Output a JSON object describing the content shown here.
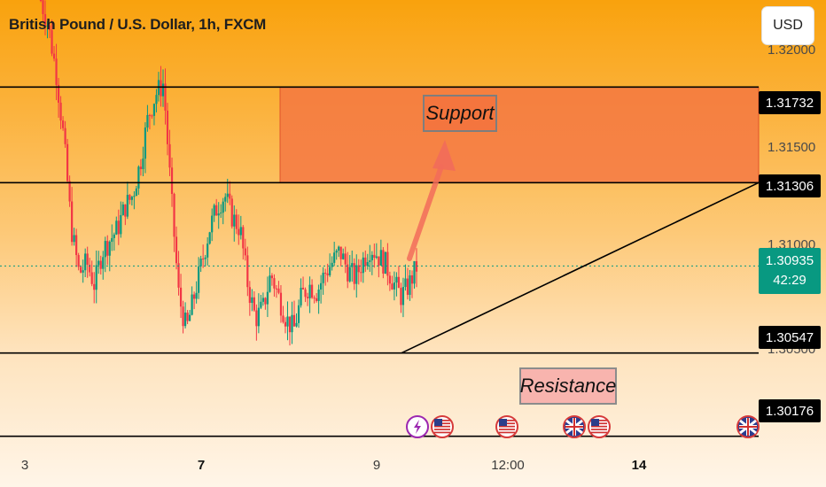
{
  "header": {
    "title": "British Pound / U.S. Dollar, 1h, FXCM",
    "currency_button": "USD"
  },
  "annotations": {
    "support_label": "Support",
    "resistance_label": "Resistance"
  },
  "price_tags": {
    "level_1": "1.31732",
    "level_2": "1.31306",
    "level_3": "1.30547",
    "level_4": "1.30176",
    "current_price": "1.30935",
    "countdown": "42:29"
  },
  "price_axis": {
    "ticks": [
      "1.32000",
      "1.31500",
      "1.31000",
      "1.30500"
    ]
  },
  "time_axis": {
    "labels": [
      "3",
      "7",
      "9",
      "12:00",
      "14"
    ]
  },
  "events": [
    {
      "icon": "lightning-icon"
    },
    {
      "icon": "us-flag-icon"
    },
    {
      "icon": "us-flag-icon"
    },
    {
      "icon": "uk-flag-icon"
    },
    {
      "icon": "us-flag-icon"
    },
    {
      "icon": "uk-flag-icon"
    }
  ],
  "colors": {
    "bull": "#089981",
    "bear": "#f23645",
    "zone": "#f47442",
    "current_tag": "#089981",
    "event_purple": "#9c27b0"
  },
  "chart_data": {
    "type": "candlestick",
    "title": "British Pound / U.S. Dollar, 1h, FXCM",
    "ylim": [
      1.2995,
      1.3212
    ],
    "horizontal_levels": [
      1.31732,
      1.31306,
      1.30547,
      1.30176
    ],
    "supply_zone": {
      "low": 1.31306,
      "high": 1.31732
    },
    "trendline": {
      "from_price": 1.30547,
      "to_price": 1.31306
    },
    "current_price": 1.30935,
    "price_path": [
      1.3212,
      1.32,
      1.318,
      1.315,
      1.311,
      1.309,
      1.3095,
      1.3085,
      1.31,
      1.3105,
      1.311,
      1.312,
      1.3125,
      1.314,
      1.316,
      1.317,
      1.3175,
      1.3125,
      1.308,
      1.3065,
      1.308,
      1.3095,
      1.311,
      1.312,
      1.3125,
      1.3115,
      1.311,
      1.3085,
      1.307,
      1.3075,
      1.309,
      1.308,
      1.307,
      1.3065,
      1.308,
      1.3085,
      1.3082,
      1.309,
      1.3095,
      1.31,
      1.3092,
      1.3088,
      1.3096,
      1.3102,
      1.3098,
      1.3094,
      1.3086,
      1.308,
      1.3085,
      1.3093
    ]
  }
}
